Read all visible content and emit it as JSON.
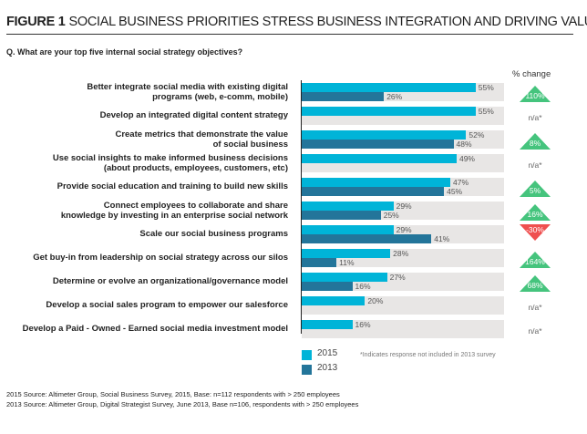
{
  "header": {
    "figure_label": "FIGURE 1",
    "title": "SOCIAL BUSINESS PRIORITIES STRESS BUSINESS INTEGRATION AND DRIVING VALUE",
    "question": "Q. What are your top five internal social strategy objectives?"
  },
  "chart_data": {
    "type": "bar",
    "orientation": "horizontal",
    "xlim": [
      0,
      64
    ],
    "grid": false,
    "legend_position": "bottom",
    "categories": [
      [
        "Better integrate social media with existing digital",
        "programs (web, e-comm, mobile)"
      ],
      [
        "Develop an integrated digital content strategy"
      ],
      [
        "Create metrics that demonstrate the value",
        "of social business"
      ],
      [
        "Use social insights to make informed business decisions",
        "(about products, employees, customers, etc)"
      ],
      [
        "Provide social education and training to build new skills"
      ],
      [
        "Connect employees to collaborate and share",
        "knowledge by investing in an enterprise social network"
      ],
      [
        "Scale our social business programs"
      ],
      [
        "Get buy-in from leadership on social strategy across our silos"
      ],
      [
        "Determine or evolve an organizational/governance model"
      ],
      [
        "Develop a social sales program to empower our salesforce"
      ],
      [
        "Develop a Paid - Owned - Earned social media investment model"
      ]
    ],
    "series": [
      {
        "name": "2015",
        "color": "#00b4d8",
        "values": [
          55,
          55,
          52,
          49,
          47,
          29,
          29,
          28,
          27,
          20,
          16
        ]
      },
      {
        "name": "2013",
        "color": "#23759a",
        "values": [
          26,
          null,
          48,
          null,
          45,
          25,
          41,
          11,
          16,
          null,
          null
        ]
      }
    ],
    "change_header": "% change",
    "change": [
      "110%",
      "n/a*",
      "8%",
      "n/a*",
      "5%",
      "16%",
      "-30%",
      "164%",
      "68%",
      "n/a*",
      "n/a*"
    ],
    "change_colors": {
      "up": "#45c47d",
      "down": "#ef4f4f"
    },
    "footnote": "*Indicates response not included in 2013 survey"
  },
  "sources": [
    "2015 Source: Altimeter Group, Social Business Survey, 2015, Base: n=112 respondents with > 250 employees",
    "2013 Source: Altimeter Group, Digital Strategist Survey, June 2013, Base n=106, respondents with > 250 employees"
  ]
}
